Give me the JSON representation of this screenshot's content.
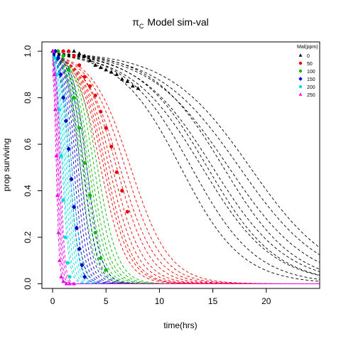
{
  "chart_data": {
    "type": "line",
    "title": "Model sim-val",
    "title_symbol": "π",
    "title_symbol_sub": "C",
    "xlabel": "time(hrs)",
    "ylabel": "prop surviving",
    "xlim": [
      -1,
      25
    ],
    "ylim": [
      -0.02,
      1.04
    ],
    "x_ticks": [
      0,
      5,
      10,
      15,
      20
    ],
    "x_tick_labels": [
      "0",
      "5",
      "10",
      "15",
      "20"
    ],
    "y_ticks": [
      0.0,
      0.2,
      0.4,
      0.6,
      0.8,
      1.0
    ],
    "y_tick_labels": [
      "0.0",
      "0.2",
      "0.4",
      "0.6",
      "0.8",
      "1.0"
    ],
    "legend": {
      "title": "Mal(ppm)",
      "placement": "top-right",
      "entries": [
        {
          "label": "0",
          "color": "#000000",
          "marker": "triangle"
        },
        {
          "label": "50",
          "color": "#ee0000",
          "marker": "circle"
        },
        {
          "label": "100",
          "color": "#00bb00",
          "marker": "circle"
        },
        {
          "label": "150",
          "color": "#0000cc",
          "marker": "diamond"
        },
        {
          "label": "200",
          "color": "#00dddd",
          "marker": "circle"
        },
        {
          "label": "250",
          "color": "#ee00ee",
          "marker": "triangle"
        }
      ]
    },
    "series": [
      {
        "name": "0",
        "color": "#000000",
        "sim_curves": [
          {
            "t50": 12.0,
            "k": 0.35
          },
          {
            "t50": 13.0,
            "k": 0.33
          },
          {
            "t50": 14.0,
            "k": 0.3
          },
          {
            "t50": 14.5,
            "k": 0.31
          },
          {
            "t50": 15.0,
            "k": 0.29
          },
          {
            "t50": 16.0,
            "k": 0.3
          },
          {
            "t50": 16.5,
            "k": 0.27
          },
          {
            "t50": 17.5,
            "k": 0.26
          },
          {
            "t50": 18.5,
            "k": 0.26
          }
        ],
        "observed": {
          "x": [
            0.0,
            0.5,
            1.0,
            1.5,
            2.0,
            2.5,
            3.0,
            3.5,
            4.0,
            4.5,
            5.0,
            5.5,
            6.0,
            6.5,
            7.0,
            7.5,
            8.0
          ],
          "y": [
            1.0,
            1.0,
            1.0,
            1.0,
            1.0,
            0.99,
            0.98,
            0.96,
            0.94,
            0.93,
            0.92,
            0.91,
            0.9,
            0.88,
            0.87,
            0.85,
            0.84
          ]
        }
      },
      {
        "name": "50",
        "color": "#ee0000",
        "sim_curves": [
          {
            "t50": 4.5,
            "k": 0.85
          },
          {
            "t50": 4.8,
            "k": 0.82
          },
          {
            "t50": 5.0,
            "k": 0.8
          },
          {
            "t50": 5.3,
            "k": 0.75
          },
          {
            "t50": 5.6,
            "k": 0.7
          },
          {
            "t50": 6.0,
            "k": 0.65
          },
          {
            "t50": 6.3,
            "k": 0.6
          },
          {
            "t50": 6.8,
            "k": 0.58
          },
          {
            "t50": 7.3,
            "k": 0.55
          }
        ],
        "observed": {
          "x": [
            0.5,
            1.0,
            1.5,
            2.0,
            2.5,
            3.0,
            3.5,
            4.0,
            4.5,
            5.0,
            5.5,
            6.0,
            6.5,
            7.0
          ],
          "y": [
            1.0,
            1.0,
            1.0,
            0.98,
            0.94,
            0.89,
            0.85,
            0.81,
            0.74,
            0.67,
            0.59,
            0.48,
            0.4,
            0.31
          ]
        }
      },
      {
        "name": "100",
        "color": "#00bb00",
        "sim_curves": [
          {
            "t50": 2.6,
            "k": 1.5
          },
          {
            "t50": 2.8,
            "k": 1.4
          },
          {
            "t50": 3.0,
            "k": 1.35
          },
          {
            "t50": 3.2,
            "k": 1.3
          },
          {
            "t50": 3.4,
            "k": 1.2
          },
          {
            "t50": 3.6,
            "k": 1.15
          },
          {
            "t50": 3.9,
            "k": 1.1
          },
          {
            "t50": 4.2,
            "k": 1.05
          }
        ],
        "observed": {
          "x": [
            0.5,
            1.0,
            1.5,
            2.0,
            2.5,
            3.0,
            3.5,
            4.0,
            4.5,
            5.0
          ],
          "y": [
            1.0,
            0.98,
            0.92,
            0.8,
            0.67,
            0.52,
            0.38,
            0.22,
            0.11,
            0.06
          ]
        }
      },
      {
        "name": "150",
        "color": "#0000cc",
        "sim_curves": [
          {
            "t50": 1.6,
            "k": 2.3
          },
          {
            "t50": 1.8,
            "k": 2.1
          },
          {
            "t50": 2.0,
            "k": 2.0
          },
          {
            "t50": 2.2,
            "k": 1.9
          },
          {
            "t50": 2.4,
            "k": 1.8
          },
          {
            "t50": 2.6,
            "k": 1.7
          },
          {
            "t50": 2.9,
            "k": 1.6
          },
          {
            "t50": 3.2,
            "k": 1.5
          }
        ],
        "observed": {
          "x": [
            0.25,
            0.5,
            0.75,
            1.0,
            1.25,
            1.5,
            1.75,
            2.0,
            2.25,
            2.5,
            2.75,
            3.0
          ],
          "y": [
            1.0,
            0.97,
            0.9,
            0.8,
            0.7,
            0.58,
            0.45,
            0.33,
            0.24,
            0.15,
            0.08,
            0.03
          ]
        }
      },
      {
        "name": "200",
        "color": "#00dddd",
        "sim_curves": [
          {
            "t50": 0.9,
            "k": 3.2
          },
          {
            "t50": 1.0,
            "k": 3.0
          },
          {
            "t50": 1.15,
            "k": 2.8
          },
          {
            "t50": 1.3,
            "k": 2.6
          },
          {
            "t50": 1.45,
            "k": 2.5
          },
          {
            "t50": 1.6,
            "k": 2.4
          },
          {
            "t50": 1.8,
            "k": 2.2
          }
        ],
        "observed": {
          "x": [
            0.2,
            0.4,
            0.6,
            0.8,
            1.0,
            1.2,
            1.4,
            1.6
          ],
          "y": [
            0.97,
            0.9,
            0.75,
            0.55,
            0.36,
            0.2,
            0.09,
            0.03
          ]
        }
      },
      {
        "name": "250",
        "color": "#ee00ee",
        "sim_curves": [
          {
            "t50": 0.35,
            "k": 7.0
          },
          {
            "t50": 0.45,
            "k": 6.5
          },
          {
            "t50": 0.55,
            "k": 6.0
          },
          {
            "t50": 0.65,
            "k": 5.5
          },
          {
            "t50": 0.75,
            "k": 5.0
          }
        ],
        "observed": {
          "x": [
            0.05,
            0.15,
            0.25,
            0.35,
            0.45,
            0.55,
            0.65,
            0.8,
            1.0,
            1.3,
            1.6,
            2.0
          ],
          "y": [
            1.0,
            0.9,
            0.75,
            0.55,
            0.38,
            0.22,
            0.1,
            0.03,
            0.01,
            0.0,
            0.0,
            0.0
          ]
        }
      }
    ]
  }
}
